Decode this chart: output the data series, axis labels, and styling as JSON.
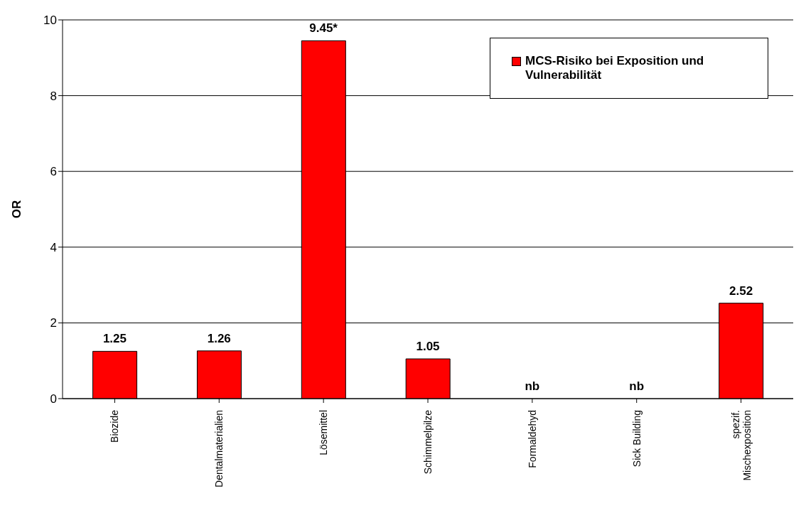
{
  "chart_data": {
    "type": "bar",
    "ylabel": "OR",
    "categories": [
      "Biozide",
      "Dentalmaterialien",
      "Lösemittel",
      "Schimmelpilze",
      "Formaldehyd",
      "Sick Building",
      "spezif. Mischexposition"
    ],
    "series": [
      {
        "name": "MCS-Risiko bei Exposition und Vulnerabilität",
        "color": "#ff0000",
        "values": [
          1.25,
          1.26,
          9.45,
          1.05,
          null,
          null,
          2.52
        ],
        "value_labels": [
          "1.25",
          "1.26",
          "9.45*",
          "1.05",
          "nb",
          "nb",
          "2.52"
        ]
      }
    ],
    "ylim": [
      0,
      10
    ],
    "yticks": [
      0,
      2,
      4,
      6,
      8,
      10
    ],
    "grid": "y",
    "legend": "top right"
  }
}
